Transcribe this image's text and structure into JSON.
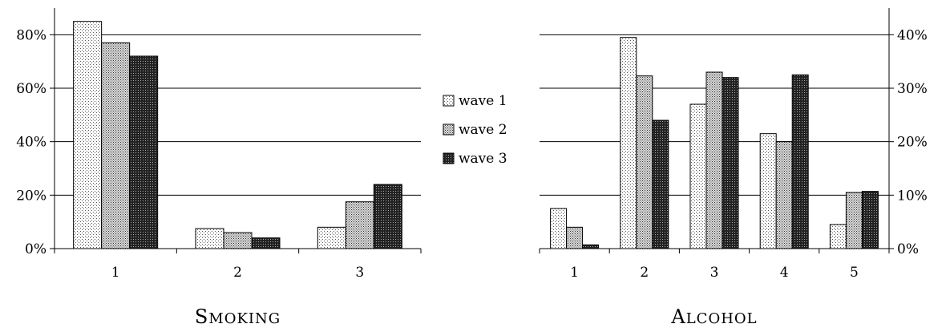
{
  "legend": [
    {
      "name": "wave 1",
      "pattern": "light"
    },
    {
      "name": "wave 2",
      "pattern": "medium"
    },
    {
      "name": "wave 3",
      "pattern": "dark"
    }
  ],
  "chart_data": [
    {
      "type": "bar",
      "title": "Smoking",
      "categories": [
        "1",
        "2",
        "3"
      ],
      "ylim": [
        0,
        90
      ],
      "yticks": [
        0,
        20,
        40,
        60,
        80
      ],
      "ytick_labels": [
        "0%",
        "20%",
        "40%",
        "60%",
        "80%"
      ],
      "y_axis_side": "left",
      "grid": true,
      "series": [
        {
          "name": "wave 1",
          "values": [
            85,
            7.5,
            8
          ]
        },
        {
          "name": "wave 2",
          "values": [
            77,
            6,
            17.5
          ]
        },
        {
          "name": "wave 3",
          "values": [
            72,
            4,
            24
          ]
        }
      ]
    },
    {
      "type": "bar",
      "title": "Alcohol",
      "categories": [
        "1",
        "2",
        "3",
        "4",
        "5"
      ],
      "ylim": [
        0,
        45
      ],
      "yticks": [
        0,
        10,
        20,
        30,
        40
      ],
      "ytick_labels": [
        "0%",
        "10%",
        "20%",
        "30%",
        "40%"
      ],
      "y_axis_side": "right",
      "grid": true,
      "series": [
        {
          "name": "wave 1",
          "values": [
            7.5,
            39.5,
            27,
            21.5,
            4.5
          ]
        },
        {
          "name": "wave 2",
          "values": [
            4,
            32.3,
            33,
            20,
            10.5
          ]
        },
        {
          "name": "wave 3",
          "values": [
            0.7,
            24,
            32,
            32.5,
            10.7
          ]
        }
      ]
    }
  ]
}
